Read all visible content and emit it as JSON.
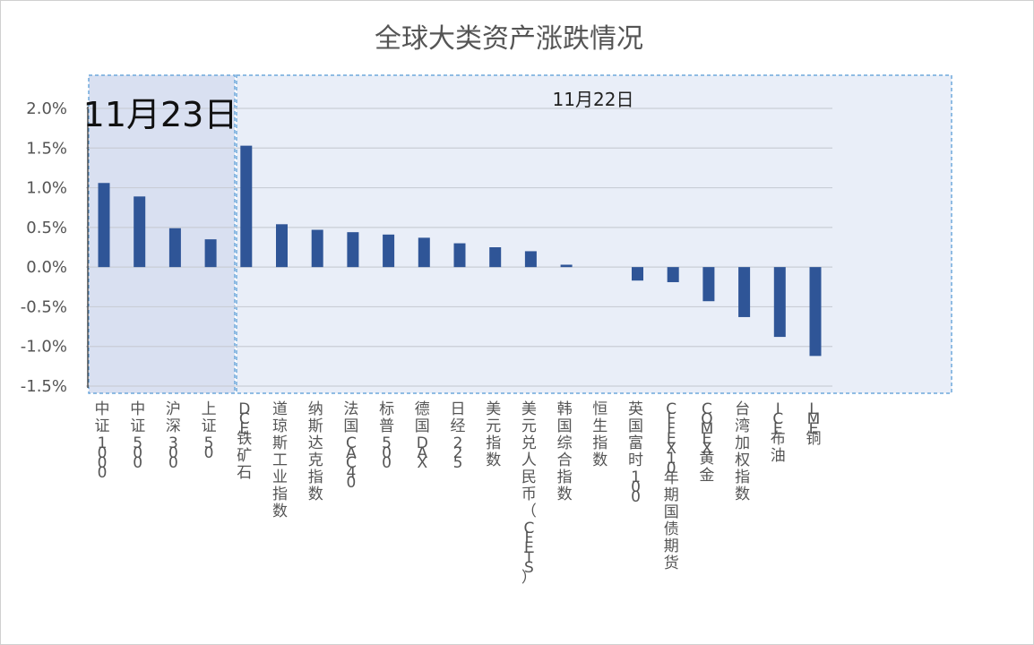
{
  "chart_data": {
    "type": "bar",
    "title": "全球大类资产涨跌情况",
    "ylabel": "",
    "xlabel": "",
    "ylim": [
      -1.5,
      2.0
    ],
    "yticks": [
      2.0,
      1.5,
      1.0,
      0.5,
      0.0,
      -0.5,
      -1.0,
      -1.5
    ],
    "ytick_labels": [
      "2.0%",
      "1.5%",
      "1.0%",
      "0.5%",
      "0.0%",
      "-0.5%",
      "-1.0%",
      "-1.5%"
    ],
    "categories": [
      "中证1000",
      "中证500",
      "沪深300",
      "上证50",
      "DCE铁矿石",
      "道琼斯工业指数",
      "纳斯达克指数",
      "法国CAC40",
      "标普500",
      "德国DAX",
      "日经225",
      "美元指数",
      "美元兑人民币（CFETS）",
      "韩国综合指数",
      "恒生指数",
      "英国富时100",
      "CFFEX10年期国债期货",
      "COMEX黄金",
      "台湾加权指数",
      "ICE布油",
      "LME铜"
    ],
    "values": [
      1.06,
      0.89,
      0.49,
      0.35,
      1.53,
      0.54,
      0.47,
      0.44,
      0.41,
      0.37,
      0.3,
      0.25,
      0.2,
      0.03,
      0.0,
      -0.17,
      -0.19,
      -0.43,
      -0.63,
      -0.88,
      -1.12
    ],
    "color": "#2F5597",
    "groups": [
      {
        "label": "11月23日",
        "first": 0,
        "last": 3,
        "fill": "#D9E0F1"
      },
      {
        "label": "11月22日",
        "first": 4,
        "last": 20,
        "fill": "#E9EEF8"
      }
    ],
    "group_border": "#6FA8DC",
    "grid": true,
    "grid_color": "#C9CDD6",
    "text_color": "#555555"
  }
}
